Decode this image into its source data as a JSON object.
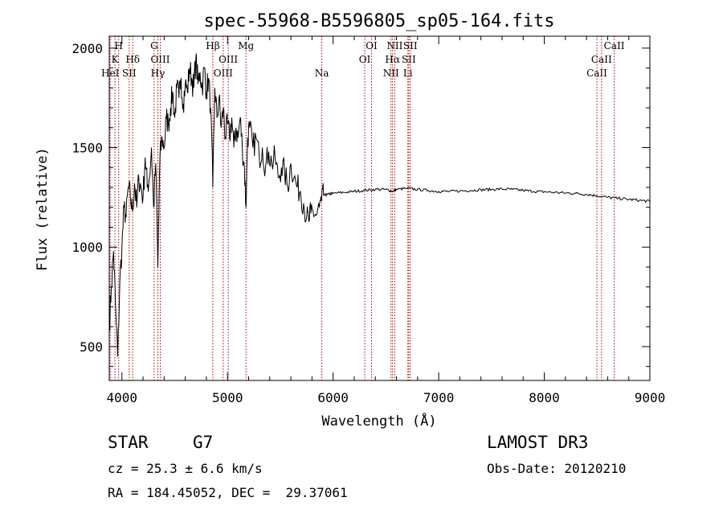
{
  "chart_data": {
    "type": "line",
    "title": "spec-55968-B5596805_sp05-164.fits",
    "xlabel": "Wavelength (Å)",
    "ylabel": "Flux (relative)",
    "xlim": [
      3880,
      9000
    ],
    "ylim": [
      330,
      2060
    ],
    "xticks": [
      4000,
      5000,
      6000,
      7000,
      8000,
      9000
    ],
    "yticks": [
      500,
      1000,
      1500,
      2000
    ],
    "grid": false,
    "series": [
      {
        "name": "spectrum",
        "x": [
          3880,
          3900,
          3920,
          3940,
          3960,
          3980,
          4000,
          4020,
          4040,
          4060,
          4080,
          4100,
          4120,
          4140,
          4160,
          4180,
          4200,
          4220,
          4240,
          4260,
          4280,
          4300,
          4320,
          4340,
          4360,
          4380,
          4400,
          4420,
          4440,
          4460,
          4480,
          4500,
          4520,
          4540,
          4560,
          4580,
          4600,
          4620,
          4640,
          4660,
          4680,
          4700,
          4720,
          4740,
          4760,
          4780,
          4800,
          4820,
          4840,
          4861,
          4880,
          4900,
          4920,
          4940,
          4960,
          4980,
          5000,
          5020,
          5040,
          5060,
          5080,
          5100,
          5120,
          5140,
          5160,
          5175,
          5190,
          5210,
          5240,
          5270,
          5300,
          5330,
          5360,
          5390,
          5420,
          5450,
          5480,
          5510,
          5540,
          5570,
          5600,
          5630,
          5660,
          5690,
          5720,
          5750,
          5770,
          5790,
          5810,
          5840,
          5870,
          5890,
          5910,
          5950,
          6000,
          6100,
          6200,
          6300,
          6400,
          6500,
          6563,
          6600,
          6700,
          6800,
          6900,
          7000,
          7100,
          7200,
          7300,
          7400,
          7500,
          7600,
          7700,
          7800,
          7900,
          8000,
          8100,
          8200,
          8300,
          8400,
          8500,
          8600,
          8700,
          8800,
          8900,
          9000
        ],
        "y": [
          600,
          800,
          980,
          700,
          450,
          820,
          1000,
          1200,
          1150,
          1300,
          1250,
          1180,
          1320,
          1200,
          1350,
          1300,
          1250,
          1450,
          1300,
          1350,
          1500,
          1200,
          1420,
          900,
          1450,
          1550,
          1500,
          1650,
          1620,
          1700,
          1780,
          1650,
          1800,
          1750,
          1850,
          1720,
          1820,
          1780,
          1900,
          1850,
          1800,
          1950,
          1820,
          1880,
          1800,
          1900,
          1780,
          1850,
          1700,
          1300,
          1800,
          1650,
          1750,
          1600,
          1700,
          1550,
          1620,
          1550,
          1650,
          1500,
          1600,
          1550,
          1650,
          1500,
          1400,
          1200,
          1550,
          1600,
          1500,
          1550,
          1450,
          1500,
          1400,
          1480,
          1420,
          1450,
          1350,
          1400,
          1380,
          1300,
          1420,
          1350,
          1300,
          1280,
          1220,
          1150,
          1130,
          1170,
          1180,
          1160,
          1200,
          1230,
          1260,
          1265,
          1270,
          1275,
          1280,
          1285,
          1290,
          1290,
          1280,
          1290,
          1295,
          1290,
          1285,
          1280,
          1280,
          1282,
          1285,
          1288,
          1290,
          1292,
          1290,
          1285,
          1280,
          1278,
          1275,
          1272,
          1270,
          1265,
          1258,
          1250,
          1245,
          1240,
          1235,
          1230
        ]
      }
    ],
    "lines": [
      {
        "label": "K",
        "x": 3934,
        "row": 2
      },
      {
        "label": "H",
        "x": 3969,
        "row": 1
      },
      {
        "label": "HeI",
        "x": 3889,
        "row": 3
      },
      {
        "label": "SII",
        "x": 4069,
        "row": 3
      },
      {
        "label": "Hδ",
        "x": 4102,
        "row": 2
      },
      {
        "label": "G",
        "x": 4305,
        "row": 1
      },
      {
        "label": "OIII",
        "x": 4363,
        "row": 2
      },
      {
        "label": "Hγ",
        "x": 4340,
        "row": 3
      },
      {
        "label": "Hβ",
        "x": 4861,
        "row": 1
      },
      {
        "label": "OIII",
        "x": 4959,
        "row": 3
      },
      {
        "label": "OIII",
        "x": 5007,
        "row": 2
      },
      {
        "label": "Mg",
        "x": 5175,
        "row": 1
      },
      {
        "label": "Na",
        "x": 5893,
        "row": 3
      },
      {
        "label": "OI",
        "x": 6300,
        "row": 2
      },
      {
        "label": "OI",
        "x": 6364,
        "row": 1
      },
      {
        "label": "NII",
        "x": 6548,
        "row": 3
      },
      {
        "label": "Hα",
        "x": 6563,
        "row": 2
      },
      {
        "label": "NII",
        "x": 6584,
        "row": 1
      },
      {
        "label": "Li",
        "x": 6708,
        "row": 3
      },
      {
        "label": "SII",
        "x": 6717,
        "row": 2
      },
      {
        "label": "SII",
        "x": 6731,
        "row": 1
      },
      {
        "label": "CaII",
        "x": 8498,
        "row": 3
      },
      {
        "label": "CaII",
        "x": 8542,
        "row": 2
      },
      {
        "label": "CaII",
        "x": 8662,
        "row": 1
      }
    ]
  },
  "info": {
    "class_label": "STAR",
    "subclass": "G7",
    "cz_text": "cz = 25.3 ± 6.6 km/s",
    "coords_text": "RA = 184.45052, DEC =  29.37061",
    "survey": "LAMOST DR3",
    "obs_date": "Obs-Date: 20120210"
  },
  "colors": {
    "line_marker": "#b40000",
    "spectrum": "#000000"
  }
}
